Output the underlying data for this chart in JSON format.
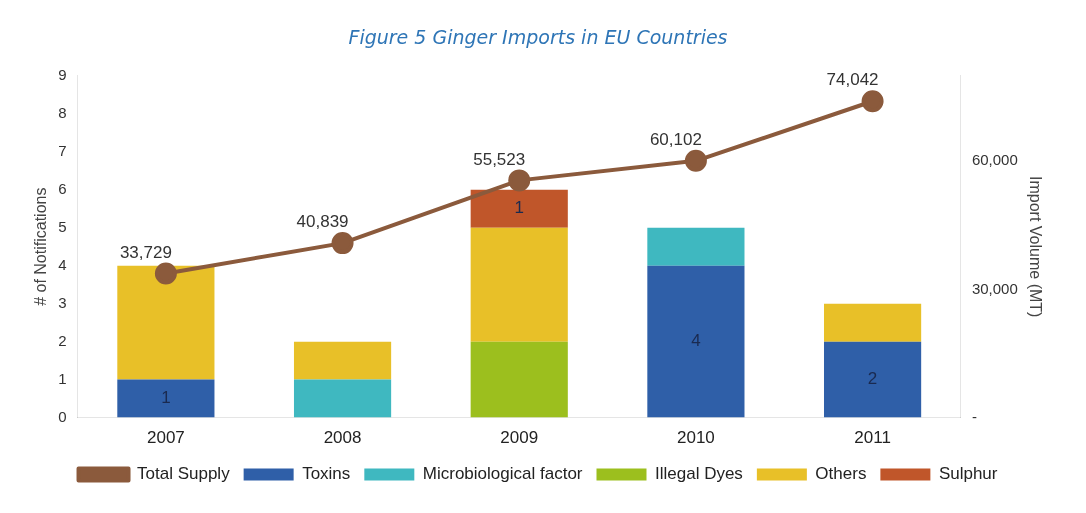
{
  "chart_data": {
    "type": "bar",
    "title": "Figure 5 Ginger Imports in EU Countries",
    "ylabel": "# of Notifications",
    "y2label": "Import Volume (MT)",
    "categories": [
      "2007",
      "2008",
      "2009",
      "2010",
      "2011"
    ],
    "stacked": true,
    "grid": false,
    "legend": "bottom",
    "ylim": [
      0,
      9
    ],
    "yticks": [
      0,
      1,
      2,
      3,
      4,
      5,
      6,
      7,
      8,
      9
    ],
    "y2lim": [
      0,
      80000
    ],
    "y2ticks": [
      {
        "value": 0,
        "label": "-"
      },
      {
        "value": 30000,
        "label": "30,000"
      },
      {
        "value": 60000,
        "label": "60,000"
      }
    ],
    "series": [
      {
        "name": "Toxins",
        "color": "#2f5fa8",
        "values": [
          1,
          0,
          0,
          4,
          2
        ],
        "value_labels": [
          "1",
          null,
          null,
          "4",
          "2"
        ]
      },
      {
        "name": "Microbiological factor",
        "color": "#3fb8c0",
        "values": [
          0,
          1,
          0,
          1,
          0
        ]
      },
      {
        "name": "Illegal Dyes",
        "color": "#9cbf1e",
        "values": [
          0,
          0,
          2,
          0,
          0
        ]
      },
      {
        "name": "Others",
        "color": "#e8c028",
        "values": [
          3,
          1,
          3,
          0,
          1
        ]
      },
      {
        "name": "Sulphur",
        "color": "#c0562a",
        "values": [
          0,
          0,
          1,
          0,
          0
        ],
        "value_labels": [
          null,
          null,
          "1",
          null,
          null
        ]
      },
      {
        "name": "Total Supply",
        "type": "line",
        "axis": "y2",
        "marker": "circle",
        "color": "#8b5a3c",
        "values": [
          33729,
          40839,
          55523,
          60102,
          74042
        ],
        "value_labels": [
          "33,729",
          "40,839",
          "55,523",
          "60,102",
          "74,042"
        ]
      }
    ]
  }
}
